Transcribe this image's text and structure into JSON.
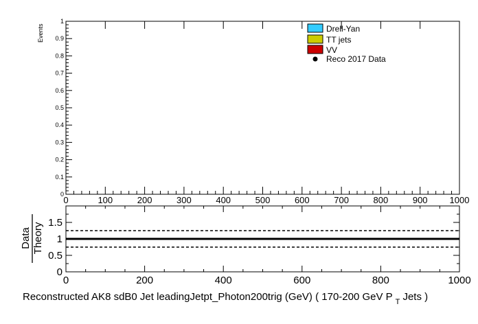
{
  "chart_data": [
    {
      "type": "bar",
      "panel": "main",
      "ylabel": "Events",
      "xlim": [
        0,
        1000
      ],
      "ylim": [
        0,
        1
      ],
      "x_ticks": [
        "0",
        "100",
        "200",
        "300",
        "400",
        "500",
        "600",
        "700",
        "800",
        "900",
        "1000"
      ],
      "y_ticks": [
        "0",
        "0.1",
        "0.2",
        "0.3",
        "0.4",
        "0.5",
        "0.6",
        "0.7",
        "0.8",
        "0.9",
        "1"
      ],
      "series": [
        {
          "name": "Drell-Yan",
          "values": [],
          "color": "#33ccff"
        },
        {
          "name": "TT jets",
          "values": [],
          "color": "#cccc00"
        },
        {
          "name": "VV",
          "values": [],
          "color": "#cc0000"
        },
        {
          "name": "Reco 2017 Data",
          "values": [],
          "color": "#000000",
          "marker": "point"
        }
      ],
      "legend": "top-right",
      "grid": false
    },
    {
      "type": "line",
      "panel": "ratio",
      "ylabel_num": "Data",
      "ylabel_den": "Theory",
      "xlabel_main": "Reconstructed AK8 sdB0 Jet leadingJetpt_Photon200trig (GeV) ( 170-200 GeV P",
      "xlabel_sub": "T",
      "xlabel_tail": " Jets  )",
      "xlim": [
        0,
        1000
      ],
      "ylim": [
        0,
        2
      ],
      "x_ticks": [
        "0",
        "200",
        "400",
        "600",
        "800",
        "1000"
      ],
      "y_ticks": [
        "0",
        "0.5",
        "1",
        "1.5"
      ],
      "reference_lines": [
        {
          "y": 1.0,
          "style": "solid"
        },
        {
          "y": 1.25,
          "style": "dashed"
        },
        {
          "y": 0.75,
          "style": "dashed"
        }
      ],
      "grid": false
    }
  ]
}
